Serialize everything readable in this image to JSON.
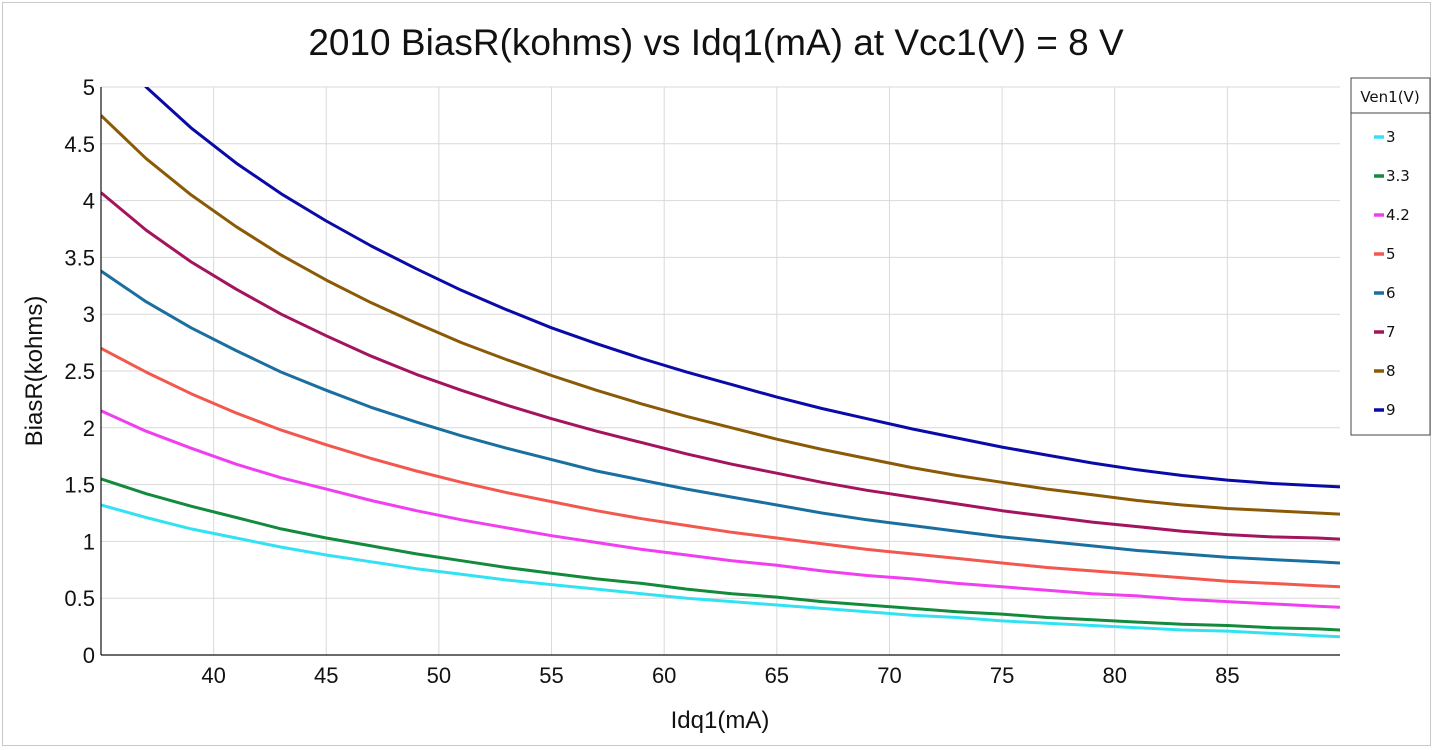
{
  "chart_data": {
    "type": "line",
    "title": "2010 BiasR(kohms) vs Idq1(mA) at Vcc1(V) = 8 V",
    "xlabel": "Idq1(mA)",
    "ylabel": "BiasR(kohms)",
    "xlim": [
      35,
      90
    ],
    "ylim": [
      0,
      5
    ],
    "x_ticks": [
      40,
      45,
      50,
      55,
      60,
      65,
      70,
      75,
      80,
      85
    ],
    "y_ticks": [
      0,
      0.5,
      1,
      1.5,
      2,
      2.5,
      3,
      3.5,
      4,
      4.5,
      5
    ],
    "y_tick_labels": [
      "0",
      "0.5",
      "1",
      "1.5",
      "2",
      "2.5",
      "3",
      "3.5",
      "4",
      "4.5",
      "5"
    ],
    "grid": true,
    "legend": {
      "title": "Ven1(V)",
      "position": "top-right"
    },
    "x": [
      35,
      37,
      39,
      41,
      43,
      45,
      47,
      49,
      51,
      53,
      55,
      57,
      59,
      61,
      63,
      65,
      67,
      69,
      71,
      73,
      75,
      77,
      79,
      81,
      83,
      85,
      87,
      89,
      90
    ],
    "series": [
      {
        "name": "3",
        "color": "#33e2f2",
        "values": [
          1.32,
          1.21,
          1.11,
          1.03,
          0.95,
          0.88,
          0.82,
          0.76,
          0.71,
          0.66,
          0.62,
          0.58,
          0.54,
          0.5,
          0.47,
          0.44,
          0.41,
          0.38,
          0.35,
          0.33,
          0.3,
          0.28,
          0.26,
          0.24,
          0.22,
          0.21,
          0.19,
          0.17,
          0.16
        ]
      },
      {
        "name": "3.3",
        "color": "#138a3c",
        "values": [
          1.55,
          1.42,
          1.31,
          1.21,
          1.11,
          1.03,
          0.96,
          0.89,
          0.83,
          0.77,
          0.72,
          0.67,
          0.63,
          0.58,
          0.54,
          0.51,
          0.47,
          0.44,
          0.41,
          0.38,
          0.36,
          0.33,
          0.31,
          0.29,
          0.27,
          0.26,
          0.24,
          0.23,
          0.22
        ]
      },
      {
        "name": "4.2",
        "color": "#f03ff0",
        "values": [
          2.15,
          1.97,
          1.82,
          1.68,
          1.56,
          1.46,
          1.36,
          1.27,
          1.19,
          1.12,
          1.05,
          0.99,
          0.93,
          0.88,
          0.83,
          0.79,
          0.74,
          0.7,
          0.67,
          0.63,
          0.6,
          0.57,
          0.54,
          0.52,
          0.49,
          0.47,
          0.45,
          0.43,
          0.42
        ]
      },
      {
        "name": "5",
        "color": "#f2584d",
        "values": [
          2.7,
          2.49,
          2.3,
          2.13,
          1.98,
          1.85,
          1.73,
          1.62,
          1.52,
          1.43,
          1.35,
          1.27,
          1.2,
          1.14,
          1.08,
          1.03,
          0.98,
          0.93,
          0.89,
          0.85,
          0.81,
          0.77,
          0.74,
          0.71,
          0.68,
          0.65,
          0.63,
          0.61,
          0.6
        ]
      },
      {
        "name": "6",
        "color": "#1b6fa0",
        "values": [
          3.38,
          3.11,
          2.88,
          2.68,
          2.49,
          2.33,
          2.18,
          2.05,
          1.93,
          1.82,
          1.72,
          1.62,
          1.54,
          1.46,
          1.39,
          1.32,
          1.25,
          1.19,
          1.14,
          1.09,
          1.04,
          1.0,
          0.96,
          0.92,
          0.89,
          0.86,
          0.84,
          0.82,
          0.81
        ]
      },
      {
        "name": "7",
        "color": "#a3135e",
        "values": [
          4.07,
          3.74,
          3.46,
          3.22,
          3.0,
          2.81,
          2.63,
          2.47,
          2.33,
          2.2,
          2.08,
          1.97,
          1.87,
          1.77,
          1.68,
          1.6,
          1.52,
          1.45,
          1.39,
          1.33,
          1.27,
          1.22,
          1.17,
          1.13,
          1.09,
          1.06,
          1.04,
          1.03,
          1.02
        ]
      },
      {
        "name": "8",
        "color": "#8a5a07",
        "values": [
          4.75,
          4.37,
          4.05,
          3.77,
          3.52,
          3.3,
          3.1,
          2.92,
          2.75,
          2.6,
          2.46,
          2.33,
          2.21,
          2.1,
          2.0,
          1.9,
          1.81,
          1.73,
          1.65,
          1.58,
          1.52,
          1.46,
          1.41,
          1.36,
          1.32,
          1.29,
          1.27,
          1.25,
          1.24
        ]
      },
      {
        "name": "9",
        "color": "#0a0aa8",
        "values": [
          5.42,
          5.0,
          4.64,
          4.33,
          4.06,
          3.82,
          3.6,
          3.4,
          3.21,
          3.04,
          2.88,
          2.74,
          2.61,
          2.49,
          2.38,
          2.27,
          2.17,
          2.08,
          1.99,
          1.91,
          1.83,
          1.76,
          1.69,
          1.63,
          1.58,
          1.54,
          1.51,
          1.49,
          1.48
        ]
      }
    ]
  }
}
